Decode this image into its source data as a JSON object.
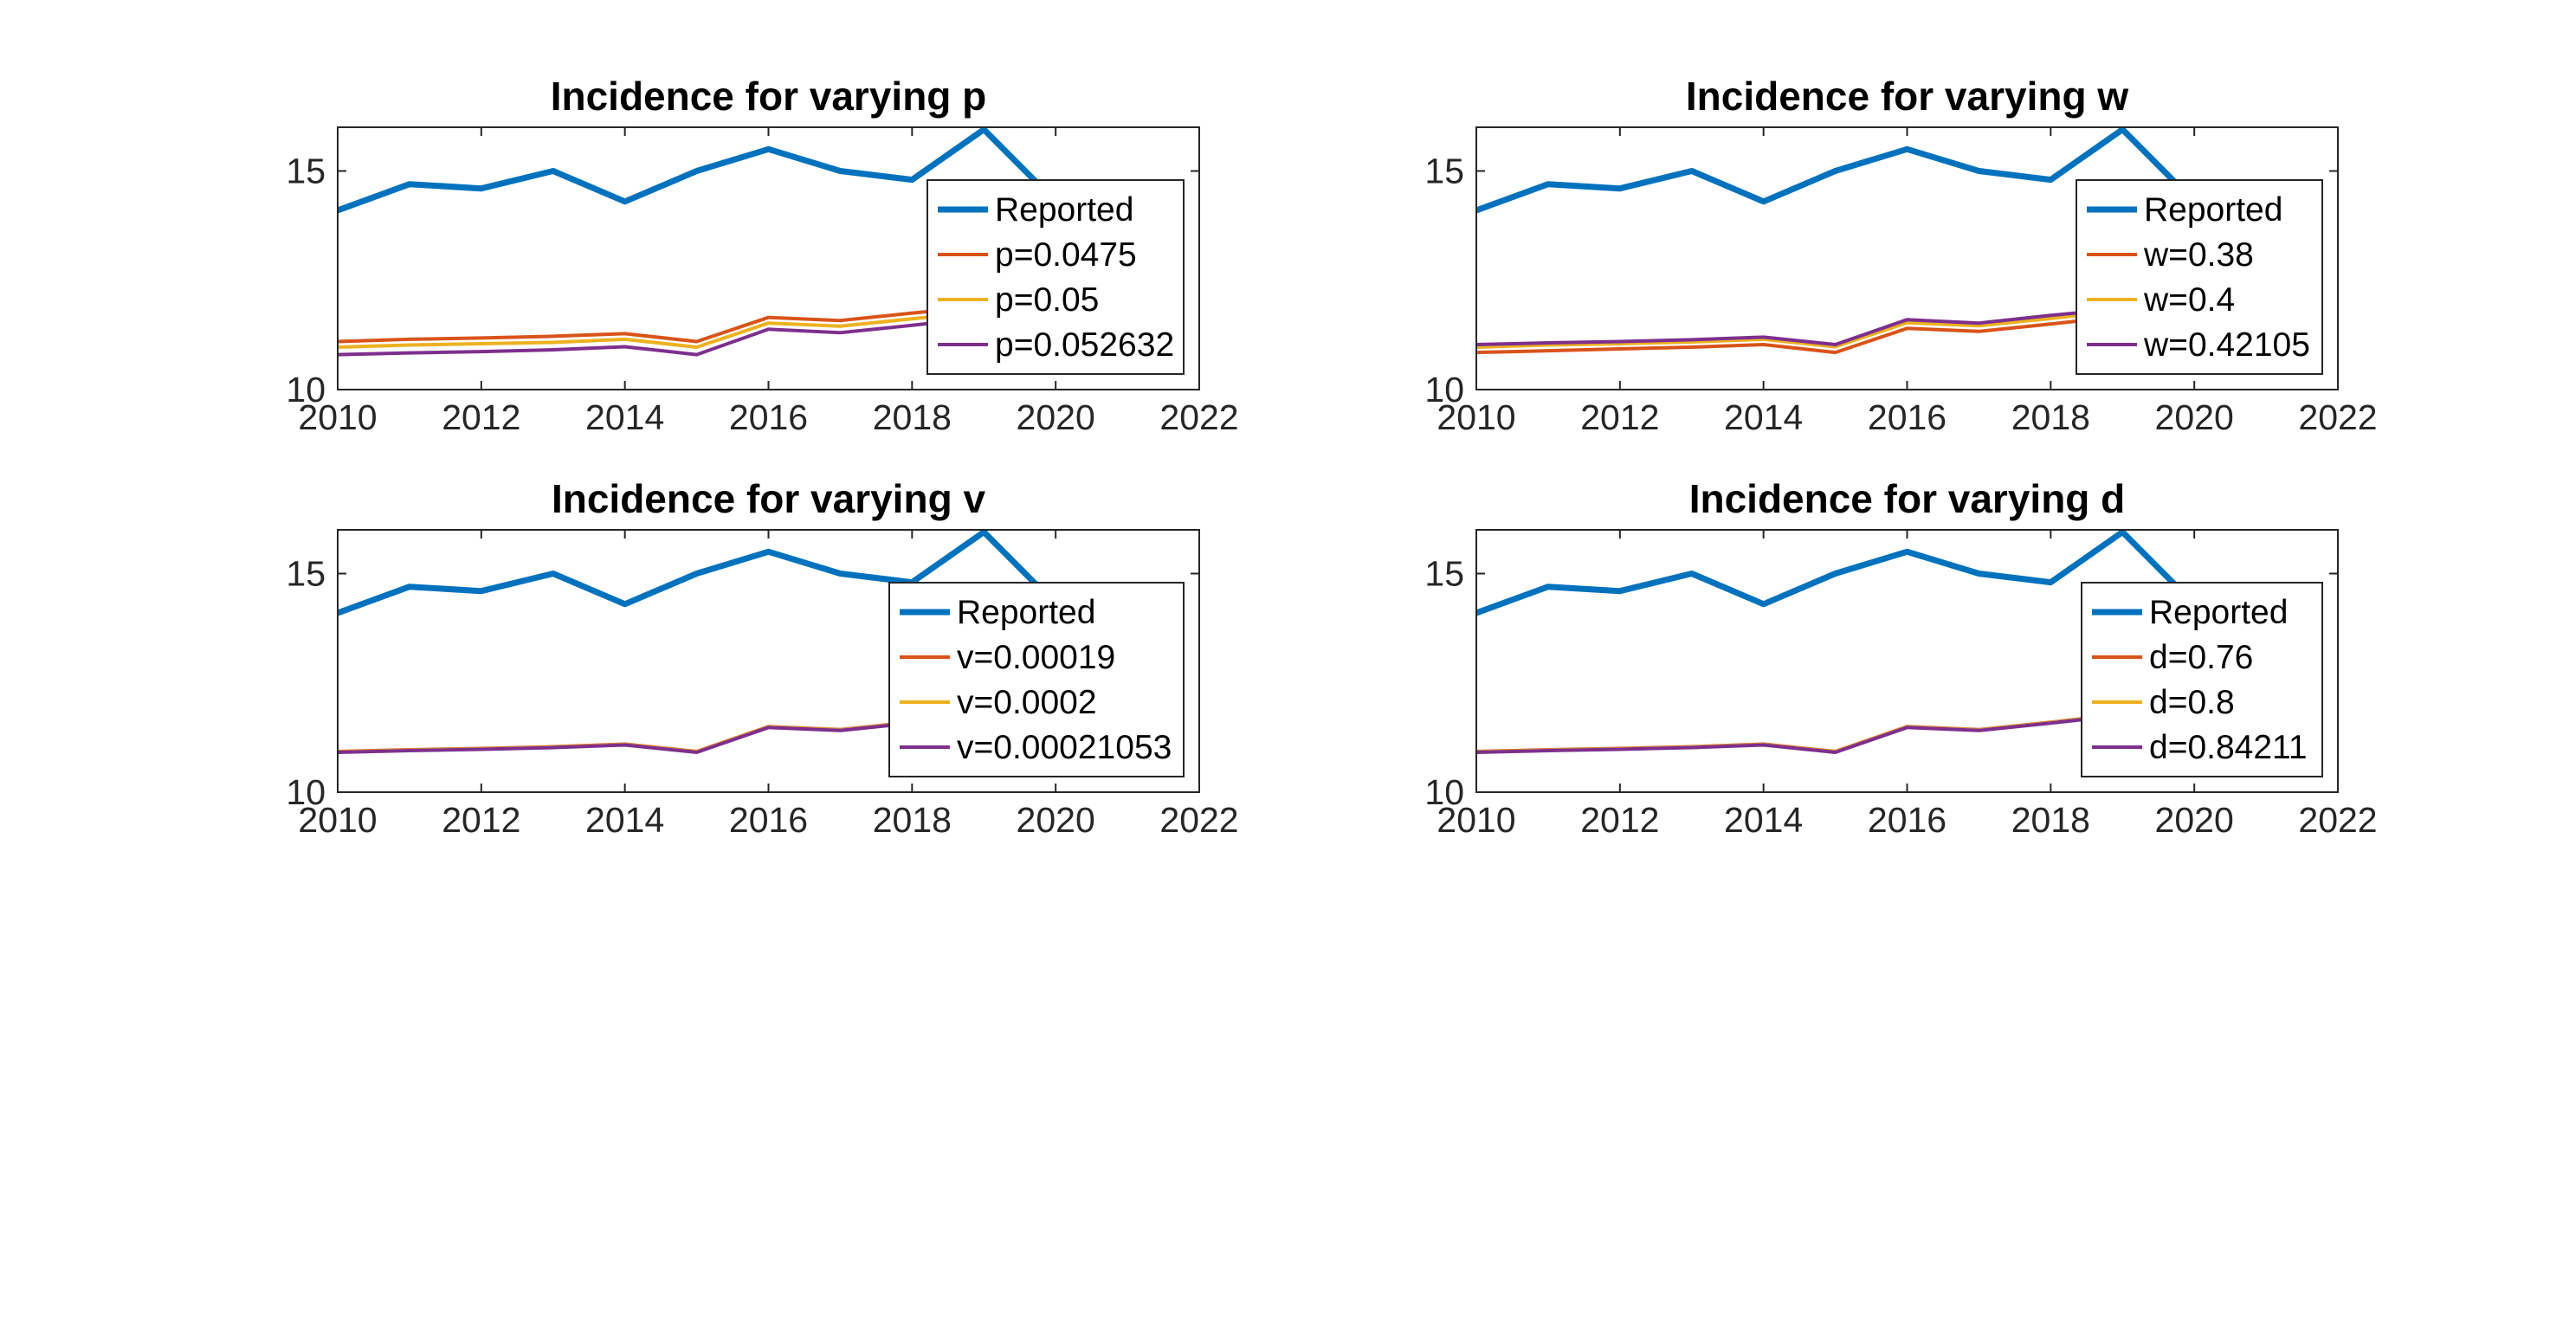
{
  "chart_data": [
    {
      "type": "line",
      "title": "Incidence for varying p",
      "xlim": [
        2010,
        2022
      ],
      "ylim": [
        10,
        16
      ],
      "xticks": [
        2010,
        2012,
        2014,
        2016,
        2018,
        2020,
        2022
      ],
      "yticks": [
        10,
        15
      ],
      "legend_location": "right",
      "series": [
        {
          "name": "Reported",
          "color": "#0072BD",
          "x": [
            2010,
            2011,
            2012,
            2013,
            2014,
            2015,
            2016,
            2017,
            2018,
            2019,
            2020
          ],
          "y": [
            14.1,
            14.7,
            14.6,
            15.0,
            14.3,
            15.0,
            15.5,
            15.0,
            14.8,
            15.95,
            14.3
          ]
        },
        {
          "name": "p=0.0475",
          "color": "#D95319",
          "x": [
            2010,
            2011,
            2012,
            2013,
            2014,
            2015,
            2016,
            2017,
            2018,
            2019
          ],
          "y": [
            11.1,
            11.15,
            11.18,
            11.22,
            11.28,
            11.1,
            11.65,
            11.58,
            11.75,
            11.9
          ]
        },
        {
          "name": "p=0.05",
          "color": "#EDB120",
          "x": [
            2010,
            2011,
            2012,
            2013,
            2014,
            2015,
            2016,
            2017,
            2018,
            2019
          ],
          "y": [
            10.97,
            11.02,
            11.05,
            11.08,
            11.15,
            10.97,
            11.52,
            11.45,
            11.62,
            11.78
          ]
        },
        {
          "name": "p=0.052632",
          "color": "#7E2F8E",
          "x": [
            2010,
            2011,
            2012,
            2013,
            2014,
            2015,
            2016,
            2017,
            2018,
            2019
          ],
          "y": [
            10.8,
            10.84,
            10.87,
            10.91,
            10.98,
            10.8,
            11.38,
            11.3,
            11.47,
            11.65
          ]
        }
      ]
    },
    {
      "type": "line",
      "title": "Incidence for varying w",
      "xlim": [
        2010,
        2022
      ],
      "ylim": [
        10,
        16
      ],
      "xticks": [
        2010,
        2012,
        2014,
        2016,
        2018,
        2020,
        2022
      ],
      "yticks": [
        10,
        15
      ],
      "legend_location": "right",
      "series": [
        {
          "name": "Reported",
          "color": "#0072BD",
          "x": [
            2010,
            2011,
            2012,
            2013,
            2014,
            2015,
            2016,
            2017,
            2018,
            2019,
            2020
          ],
          "y": [
            14.1,
            14.7,
            14.6,
            15.0,
            14.3,
            15.0,
            15.5,
            15.0,
            14.8,
            15.95,
            14.3
          ]
        },
        {
          "name": "w=0.38",
          "color": "#D95319",
          "x": [
            2010,
            2011,
            2012,
            2013,
            2014,
            2015,
            2016,
            2017,
            2018,
            2019
          ],
          "y": [
            10.85,
            10.89,
            10.93,
            10.97,
            11.03,
            10.85,
            11.4,
            11.33,
            11.5,
            11.68
          ]
        },
        {
          "name": "w=0.4",
          "color": "#EDB120",
          "x": [
            2010,
            2011,
            2012,
            2013,
            2014,
            2015,
            2016,
            2017,
            2018,
            2019
          ],
          "y": [
            10.97,
            11.02,
            11.05,
            11.09,
            11.15,
            10.98,
            11.53,
            11.46,
            11.63,
            11.8
          ]
        },
        {
          "name": "w=0.42105",
          "color": "#7E2F8E",
          "x": [
            2010,
            2011,
            2012,
            2013,
            2014,
            2015,
            2016,
            2017,
            2018,
            2019
          ],
          "y": [
            11.03,
            11.07,
            11.1,
            11.14,
            11.2,
            11.03,
            11.6,
            11.52,
            11.7,
            11.85
          ]
        }
      ]
    },
    {
      "type": "line",
      "title": "Incidence for varying v",
      "xlim": [
        2010,
        2022
      ],
      "ylim": [
        10,
        16
      ],
      "xticks": [
        2010,
        2012,
        2014,
        2016,
        2018,
        2020,
        2022
      ],
      "yticks": [
        10,
        15
      ],
      "legend_location": "right",
      "series": [
        {
          "name": "Reported",
          "color": "#0072BD",
          "x": [
            2010,
            2011,
            2012,
            2013,
            2014,
            2015,
            2016,
            2017,
            2018,
            2019,
            2020
          ],
          "y": [
            14.1,
            14.7,
            14.6,
            15.0,
            14.3,
            15.0,
            15.5,
            15.0,
            14.8,
            15.95,
            14.3
          ]
        },
        {
          "name": "v=0.00019",
          "color": "#D95319",
          "x": [
            2010,
            2011,
            2012,
            2013,
            2014,
            2015,
            2016,
            2017,
            2018,
            2019
          ],
          "y": [
            10.93,
            10.97,
            11.0,
            11.04,
            11.1,
            10.93,
            11.5,
            11.43,
            11.6,
            11.78
          ]
        },
        {
          "name": "v=0.0002",
          "color": "#EDB120",
          "x": [
            2010,
            2011,
            2012,
            2013,
            2014,
            2015,
            2016,
            2017,
            2018,
            2019
          ],
          "y": [
            10.92,
            10.96,
            10.99,
            11.03,
            11.09,
            10.92,
            11.49,
            11.42,
            11.59,
            11.77
          ]
        },
        {
          "name": "v=0.00021053",
          "color": "#7E2F8E",
          "x": [
            2010,
            2011,
            2012,
            2013,
            2014,
            2015,
            2016,
            2017,
            2018,
            2019
          ],
          "y": [
            10.91,
            10.95,
            10.98,
            11.02,
            11.08,
            10.91,
            11.48,
            11.41,
            11.58,
            11.76
          ]
        }
      ]
    },
    {
      "type": "line",
      "title": "Incidence for varying d",
      "xlim": [
        2010,
        2022
      ],
      "ylim": [
        10,
        16
      ],
      "xticks": [
        2010,
        2012,
        2014,
        2016,
        2018,
        2020,
        2022
      ],
      "yticks": [
        10,
        15
      ],
      "legend_location": "right",
      "series": [
        {
          "name": "Reported",
          "color": "#0072BD",
          "x": [
            2010,
            2011,
            2012,
            2013,
            2014,
            2015,
            2016,
            2017,
            2018,
            2019,
            2020
          ],
          "y": [
            14.1,
            14.7,
            14.6,
            15.0,
            14.3,
            15.0,
            15.5,
            15.0,
            14.8,
            15.95,
            14.3
          ]
        },
        {
          "name": "d=0.76",
          "color": "#D95319",
          "x": [
            2010,
            2011,
            2012,
            2013,
            2014,
            2015,
            2016,
            2017,
            2018,
            2019
          ],
          "y": [
            10.93,
            10.97,
            11.0,
            11.04,
            11.1,
            10.93,
            11.5,
            11.43,
            11.6,
            11.78
          ]
        },
        {
          "name": "d=0.8",
          "color": "#EDB120",
          "x": [
            2010,
            2011,
            2012,
            2013,
            2014,
            2015,
            2016,
            2017,
            2018,
            2019
          ],
          "y": [
            10.92,
            10.96,
            10.99,
            11.03,
            11.09,
            10.92,
            11.49,
            11.42,
            11.59,
            11.77
          ]
        },
        {
          "name": "d=0.84211",
          "color": "#7E2F8E",
          "x": [
            2010,
            2011,
            2012,
            2013,
            2014,
            2015,
            2016,
            2017,
            2018,
            2019
          ],
          "y": [
            10.91,
            10.95,
            10.98,
            11.02,
            11.08,
            10.91,
            11.48,
            11.41,
            11.58,
            11.76
          ]
        }
      ]
    }
  ]
}
